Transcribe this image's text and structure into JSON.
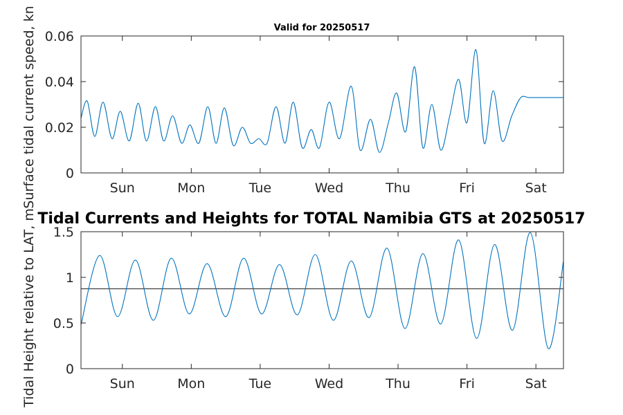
{
  "chart_data": [
    {
      "type": "line",
      "title": "Valid for 20250517",
      "ylabel": "Surface tidal current speed, kn",
      "xlabel": "",
      "x_tick_labels": [
        "Sun",
        "Mon",
        "Tue",
        "Wed",
        "Thu",
        "Fri",
        "Sat"
      ],
      "x_tick_positions_days": [
        0.6,
        1.6,
        2.6,
        3.6,
        4.6,
        5.6,
        6.6
      ],
      "xlim_days": [
        0,
        7
      ],
      "y_ticks": [
        0,
        0.02,
        0.04,
        0.06
      ],
      "y_tick_labels": [
        "0",
        "0.02",
        "0.04",
        "0.06"
      ],
      "ylim": [
        0,
        0.06
      ],
      "grid": false,
      "line_color": "#0072BD",
      "series": [
        {
          "x": [
            0,
            0.09,
            0.2,
            0.32,
            0.45,
            0.57,
            0.7,
            0.83,
            0.95,
            1.08,
            1.2,
            1.33,
            1.46,
            1.58,
            1.71,
            1.84,
            1.96,
            2.08,
            2.21,
            2.34,
            2.46,
            2.58,
            2.7,
            2.83,
            2.96,
            3.08,
            3.21,
            3.34,
            3.46,
            3.6,
            3.75,
            3.92,
            4.05,
            4.2,
            4.33,
            4.46,
            4.58,
            4.71,
            4.84,
            4.96,
            5.09,
            5.22,
            5.35,
            5.48,
            5.6,
            5.73,
            5.85,
            5.98,
            6.11,
            6.25,
            6.38,
            6.5,
            6.63,
            6.76,
            6.88,
            7.0
          ],
          "y": [
            0.024,
            0.0315,
            0.016,
            0.031,
            0.015,
            0.027,
            0.014,
            0.0305,
            0.014,
            0.029,
            0.014,
            0.025,
            0.013,
            0.021,
            0.013,
            0.029,
            0.013,
            0.0285,
            0.012,
            0.02,
            0.013,
            0.015,
            0.013,
            0.029,
            0.013,
            0.031,
            0.011,
            0.019,
            0.011,
            0.031,
            0.015,
            0.038,
            0.01,
            0.0235,
            0.009,
            0.022,
            0.035,
            0.018,
            0.0465,
            0.011,
            0.03,
            0.01,
            0.025,
            0.041,
            0.022,
            0.054,
            0.013,
            0.036,
            0.014,
            0.025,
            0.033,
            0.033,
            0.033,
            0.033,
            0.033,
            0.033
          ]
        }
      ]
    },
    {
      "type": "line",
      "title": "Tidal Currents and Heights for TOTAL Namibia GTS at 20250517",
      "ylabel": "Tidal Height relative to LAT, m",
      "xlabel": "",
      "x_tick_labels": [
        "Sun",
        "Mon",
        "Tue",
        "Wed",
        "Thu",
        "Fri",
        "Sat"
      ],
      "x_tick_positions_days": [
        0.6,
        1.6,
        2.6,
        3.6,
        4.6,
        5.6,
        6.6
      ],
      "xlim_days": [
        0,
        7
      ],
      "y_ticks": [
        0,
        0.5,
        1,
        1.5
      ],
      "y_tick_labels": [
        "0",
        "0.5",
        "1",
        "1.5"
      ],
      "ylim": [
        0,
        1.5
      ],
      "grid": false,
      "line_color": "#0072BD",
      "reference_line_value": 0.875,
      "reference_line_color": "#404040",
      "series": [
        {
          "x": [
            0,
            0.27,
            0.53,
            0.79,
            1.05,
            1.31,
            1.57,
            1.83,
            2.1,
            2.36,
            2.62,
            2.88,
            3.14,
            3.4,
            3.66,
            3.92,
            4.18,
            4.44,
            4.7,
            4.96,
            5.22,
            5.48,
            5.74,
            6.0,
            6.26,
            6.52,
            6.78,
            7.0
          ],
          "y": [
            0.48,
            1.24,
            0.57,
            1.19,
            0.53,
            1.21,
            0.6,
            1.15,
            0.57,
            1.21,
            0.6,
            1.14,
            0.59,
            1.25,
            0.53,
            1.18,
            0.56,
            1.32,
            0.44,
            1.26,
            0.49,
            1.41,
            0.33,
            1.36,
            0.42,
            1.49,
            0.22,
            1.18
          ]
        }
      ]
    }
  ]
}
